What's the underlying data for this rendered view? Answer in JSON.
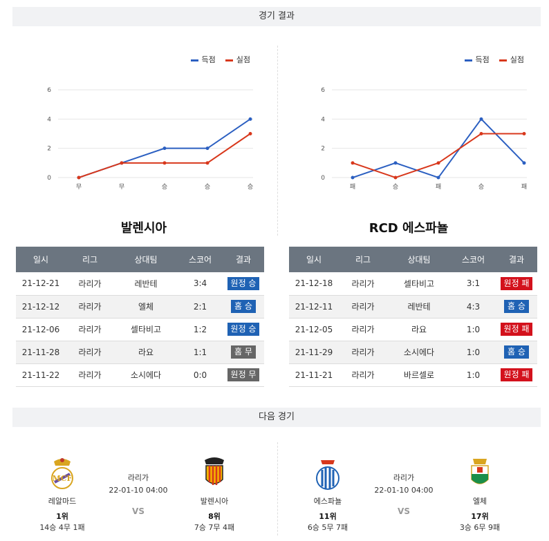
{
  "sections": {
    "results_title": "경기 결과",
    "next_title": "다음 경기"
  },
  "legend": {
    "scored": "득점",
    "conceded": "실점",
    "scored_color": "#2b5fc1",
    "conceded_color": "#d8381c"
  },
  "chart_data": [
    {
      "type": "line",
      "categories": [
        "무",
        "무",
        "승",
        "승",
        "승"
      ],
      "ylim": [
        0,
        6
      ],
      "yticks": [
        "0",
        "2",
        "4",
        "6"
      ],
      "series": [
        {
          "name": "득점",
          "values": [
            0,
            1,
            2,
            2,
            4
          ]
        },
        {
          "name": "실점",
          "values": [
            0,
            1,
            1,
            1,
            3
          ]
        }
      ]
    },
    {
      "type": "line",
      "categories": [
        "패",
        "승",
        "패",
        "승",
        "패"
      ],
      "ylim": [
        0,
        6
      ],
      "yticks": [
        "0",
        "2",
        "4",
        "6"
      ],
      "series": [
        {
          "name": "득점",
          "values": [
            0,
            1,
            0,
            4,
            1
          ]
        },
        {
          "name": "실점",
          "values": [
            1,
            0,
            1,
            3,
            3
          ]
        }
      ]
    }
  ],
  "teams": {
    "left": "발렌시아",
    "right": "RCD 에스파뇰"
  },
  "table_headers": [
    "일시",
    "리그",
    "상대팀",
    "스코어",
    "결과"
  ],
  "left_results": [
    {
      "date": "21-12-21",
      "league": "라리가",
      "opponent": "레반테",
      "score": "3:4",
      "result": "원정 승",
      "color": "blue"
    },
    {
      "date": "21-12-12",
      "league": "라리가",
      "opponent": "엘체",
      "score": "2:1",
      "result": "홈 승",
      "color": "blue"
    },
    {
      "date": "21-12-06",
      "league": "라리가",
      "opponent": "셀타비고",
      "score": "1:2",
      "result": "원정 승",
      "color": "blue"
    },
    {
      "date": "21-11-28",
      "league": "라리가",
      "opponent": "라요",
      "score": "1:1",
      "result": "홈 무",
      "color": "gray"
    },
    {
      "date": "21-11-22",
      "league": "라리가",
      "opponent": "소시에다",
      "score": "0:0",
      "result": "원정 무",
      "color": "gray"
    }
  ],
  "right_results": [
    {
      "date": "21-12-18",
      "league": "라리가",
      "opponent": "셀타비고",
      "score": "3:1",
      "result": "원정 패",
      "color": "red"
    },
    {
      "date": "21-12-11",
      "league": "라리가",
      "opponent": "레반테",
      "score": "4:3",
      "result": "홈 승",
      "color": "blue"
    },
    {
      "date": "21-12-05",
      "league": "라리가",
      "opponent": "라요",
      "score": "1:0",
      "result": "원정 패",
      "color": "red"
    },
    {
      "date": "21-11-29",
      "league": "라리가",
      "opponent": "소시에다",
      "score": "1:0",
      "result": "홈 승",
      "color": "blue"
    },
    {
      "date": "21-11-21",
      "league": "라리가",
      "opponent": "바르셀로",
      "score": "1:0",
      "result": "원정 패",
      "color": "red"
    }
  ],
  "next_matches": [
    {
      "league": "라리가",
      "datetime": "22-01-10 04:00",
      "vs": "VS",
      "home": {
        "name": "레알마드",
        "rank": "1위",
        "record": "14승 4무 1패"
      },
      "away": {
        "name": "발렌시아",
        "rank": "8위",
        "record": "7승 7무 4패"
      }
    },
    {
      "league": "라리가",
      "datetime": "22-01-10 04:00",
      "vs": "VS",
      "home": {
        "name": "에스파뇰",
        "rank": "11위",
        "record": "6승 5무 7패"
      },
      "away": {
        "name": "엘체",
        "rank": "17위",
        "record": "3승 6무 9패"
      }
    }
  ]
}
